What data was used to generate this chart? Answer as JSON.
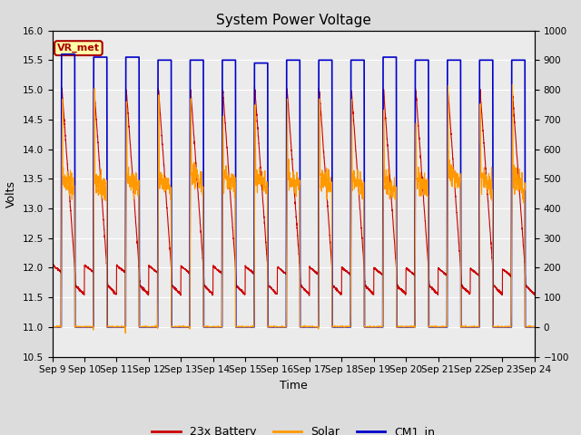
{
  "title": "System Power Voltage",
  "xlabel": "Time",
  "ylabel": "Volts",
  "ylim_left": [
    10.5,
    16.0
  ],
  "ylim_right": [
    -100,
    1000
  ],
  "yticks_left": [
    10.5,
    11.0,
    11.5,
    12.0,
    12.5,
    13.0,
    13.5,
    14.0,
    14.5,
    15.0,
    15.5,
    16.0
  ],
  "yticks_right": [
    -100,
    0,
    100,
    200,
    300,
    400,
    500,
    600,
    700,
    800,
    900,
    1000
  ],
  "xtick_labels": [
    "Sep 9",
    "Sep 10",
    "Sep 11",
    "Sep 12",
    "Sep 13",
    "Sep 14",
    "Sep 15",
    "Sep 16",
    "Sep 17",
    "Sep 18",
    "Sep 19",
    "Sep 20",
    "Sep 21",
    "Sep 22",
    "Sep 23",
    "Sep 24"
  ],
  "num_days": 15,
  "bg_color": "#dcdcdc",
  "plot_bg_color": "#ebebeb",
  "grid_color": "white",
  "annotation_text": "VR_met",
  "annotation_box_color": "#ffffaa",
  "annotation_border_color": "#aa0000",
  "line_battery_color": "#cc0000",
  "line_solar_color": "#ff9900",
  "line_cm1_color": "#0000cc",
  "legend_labels": [
    "23x Battery",
    "Solar",
    "CM1_in"
  ],
  "figsize": [
    6.4,
    4.8
  ],
  "dpi": 100
}
